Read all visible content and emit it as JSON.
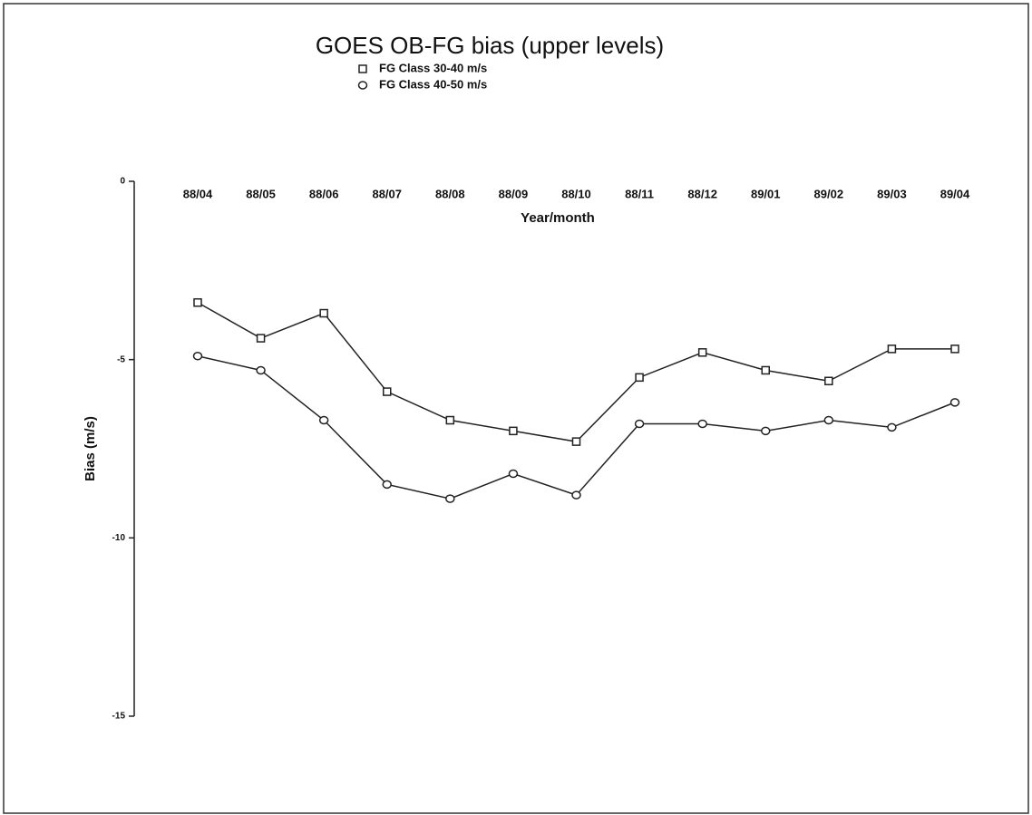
{
  "chart_data": {
    "type": "line",
    "title": "GOES OB-FG bias (upper levels)",
    "x_label": "Year/month",
    "y_label": "Bias (m/s)",
    "categories": [
      "88/04",
      "88/05",
      "88/06",
      "88/07",
      "88/08",
      "88/09",
      "88/10",
      "88/11",
      "88/12",
      "89/01",
      "89/02",
      "89/03",
      "89/04"
    ],
    "series": [
      {
        "name": "FG Class 30-40 m/s",
        "color": "#222222",
        "marker": "square",
        "values": [
          -3.4,
          -4.4,
          -3.7,
          -5.9,
          -6.7,
          -7.0,
          -7.3,
          -5.5,
          -4.8,
          -5.3,
          -5.6,
          -4.7,
          -4.7
        ]
      },
      {
        "name": "FG Class 40-50 m/s",
        "color": "#222222",
        "marker": "circle",
        "values": [
          -4.9,
          -5.3,
          -6.7,
          -8.5,
          -8.9,
          -8.2,
          -8.8,
          -6.8,
          -6.8,
          -7.0,
          -6.7,
          -6.9,
          -6.2
        ]
      }
    ],
    "ylim": [
      -15,
      0
    ],
    "yticks": [
      0,
      -5,
      -10,
      -15
    ],
    "grid": false
  }
}
